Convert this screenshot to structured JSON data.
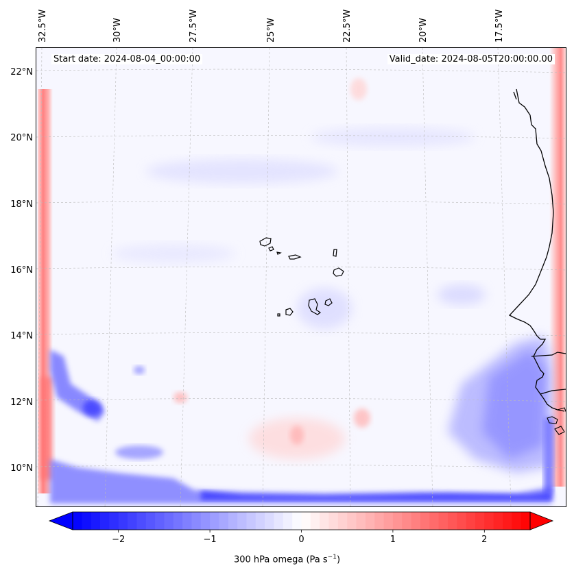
{
  "map": {
    "start_date": "Start date: 2024-08-04_00:00:00",
    "valid_date": "Valid_date: 2024-08-05T20:00:00.00",
    "longitude_labels": [
      "32.5°W",
      "30°W",
      "27.5°W",
      "25°W",
      "22.5°W",
      "20°W",
      "17.5°W"
    ],
    "latitude_labels": [
      "22°N",
      "20°N",
      "18°N",
      "16°N",
      "14°N",
      "12°N",
      "10°N"
    ],
    "field": "300 hPa omega",
    "islands": "Cape Verde",
    "coast": "West Africa (Senegal / Gambia / Guinea-Bissau)"
  },
  "colorbar": {
    "title": "300 hPa omega (Pa s",
    "title_superscript": "−1",
    "title_close": ")",
    "tick_labels": [
      "−2",
      "−1",
      "0",
      "1",
      "2"
    ],
    "tick_values": [
      -2,
      -1,
      0,
      1,
      2
    ],
    "range": [
      -2.5,
      2.5
    ],
    "colormap": "bwr",
    "extend": "both",
    "low_color": "#0000ff",
    "mid_color": "#ffffff",
    "high_color": "#ff0000"
  }
}
